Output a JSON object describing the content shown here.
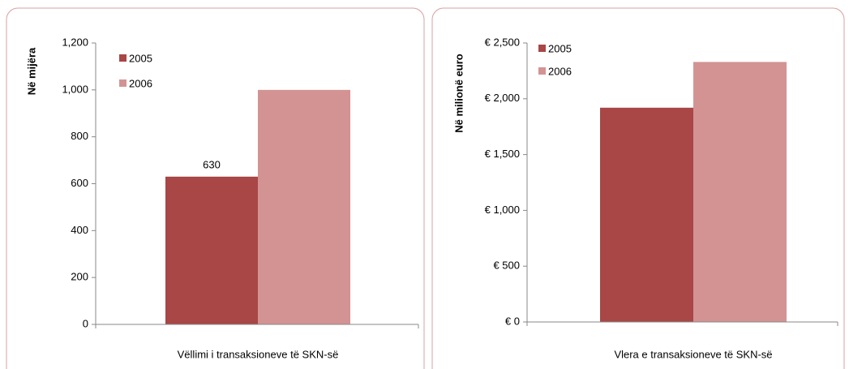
{
  "chart_data": [
    {
      "type": "bar",
      "y_label": "Në mijëra",
      "categories": [
        "Vëllimi i transaksioneve të SKN-së"
      ],
      "series": [
        {
          "name": "2005",
          "color": "#a94646",
          "values": [
            630
          ],
          "value_labels": [
            "630"
          ]
        },
        {
          "name": "2006",
          "color": "#d39393",
          "values": [
            1000
          ]
        }
      ],
      "ylim": [
        0,
        1200
      ],
      "yticks": [
        0,
        200,
        400,
        600,
        800,
        {
          "value": 1000,
          "label": "1,000"
        },
        {
          "value": 1200,
          "label": "1,200"
        }
      ],
      "grid": false,
      "legend": "upper left"
    },
    {
      "type": "bar",
      "y_label": "Në milionë euro",
      "categories": [
        "Vlera e transaksioneve të SKN-së"
      ],
      "series": [
        {
          "name": "2005",
          "color": "#a94646",
          "values": [
            1920
          ]
        },
        {
          "name": "2006",
          "color": "#d39393",
          "values": [
            2330
          ]
        }
      ],
      "ylim": [
        0,
        2500
      ],
      "yticks": [
        {
          "value": 0,
          "label": "€ 0"
        },
        {
          "value": 500,
          "label": "€ 500"
        },
        {
          "value": 1000,
          "label": "€ 1,000"
        },
        {
          "value": 1500,
          "label": "€ 1,500"
        },
        {
          "value": 2000,
          "label": "€ 2,000"
        },
        {
          "value": 2500,
          "label": "€ 2,500"
        }
      ],
      "grid": false,
      "legend": "upper left"
    }
  ]
}
